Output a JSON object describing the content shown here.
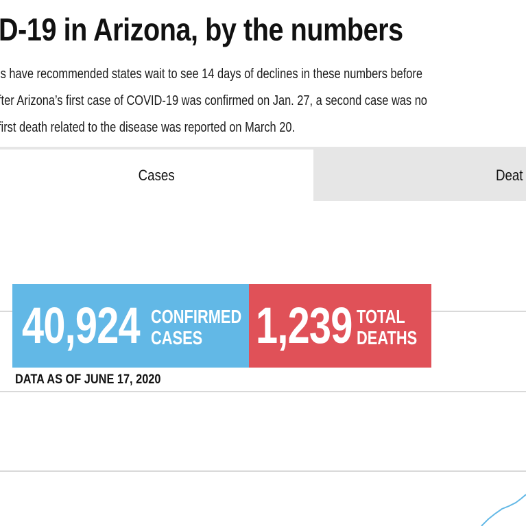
{
  "header": {
    "title": "D-19 in Arizona, by the numbers",
    "description_lines": [
      "ls have recommended states wait to see 14 days of declines in these numbers before",
      "fter Arizona’s first case of COVID-19 was confirmed on Jan. 27, a second case was no",
      "first death related to the disease was reported on March 20."
    ]
  },
  "tabs": [
    {
      "label": "Cases",
      "selected": true
    },
    {
      "label": "Deat",
      "selected": false
    }
  ],
  "stats": {
    "cases": {
      "value": "40,924",
      "label_line1": "CONFIRMED",
      "label_line2": "CASES",
      "color": "#62b8e6"
    },
    "deaths": {
      "value": "1,239",
      "label_line1": "TOTAL",
      "label_line2": "DEATHS",
      "color": "#e05158"
    },
    "as_of": "DATA AS OF JUNE 17, 2020"
  },
  "colors": {
    "tab_inactive": "#e6e6e6",
    "gridline": "#d9d9d9",
    "trend_line": "#62b8e6"
  }
}
